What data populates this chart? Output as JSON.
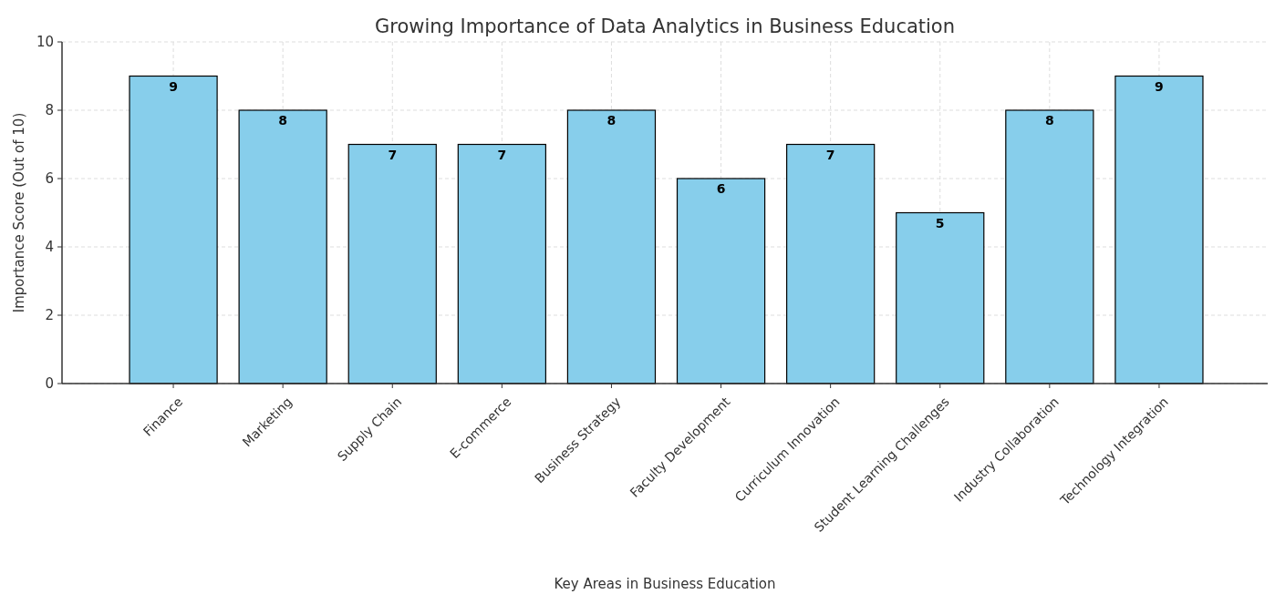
{
  "chart_data": {
    "type": "bar",
    "title": "Growing Importance of Data Analytics in Business Education",
    "xlabel": "Key Areas in Business Education",
    "ylabel": "Importance Score (Out of 10)",
    "categories": [
      "Finance",
      "Marketing",
      "Supply Chain",
      "E-commerce",
      "Business Strategy",
      "Faculty Development",
      "Curriculum Innovation",
      "Student Learning Challenges",
      "Industry Collaboration",
      "Technology Integration"
    ],
    "values": [
      9,
      8,
      7,
      7,
      8,
      6,
      7,
      5,
      8,
      9
    ],
    "color": "#87ceeb",
    "ylim": [
      0,
      10
    ],
    "yticks": [
      0,
      2,
      4,
      6,
      8,
      10
    ],
    "grid": true,
    "data_labels": true
  }
}
